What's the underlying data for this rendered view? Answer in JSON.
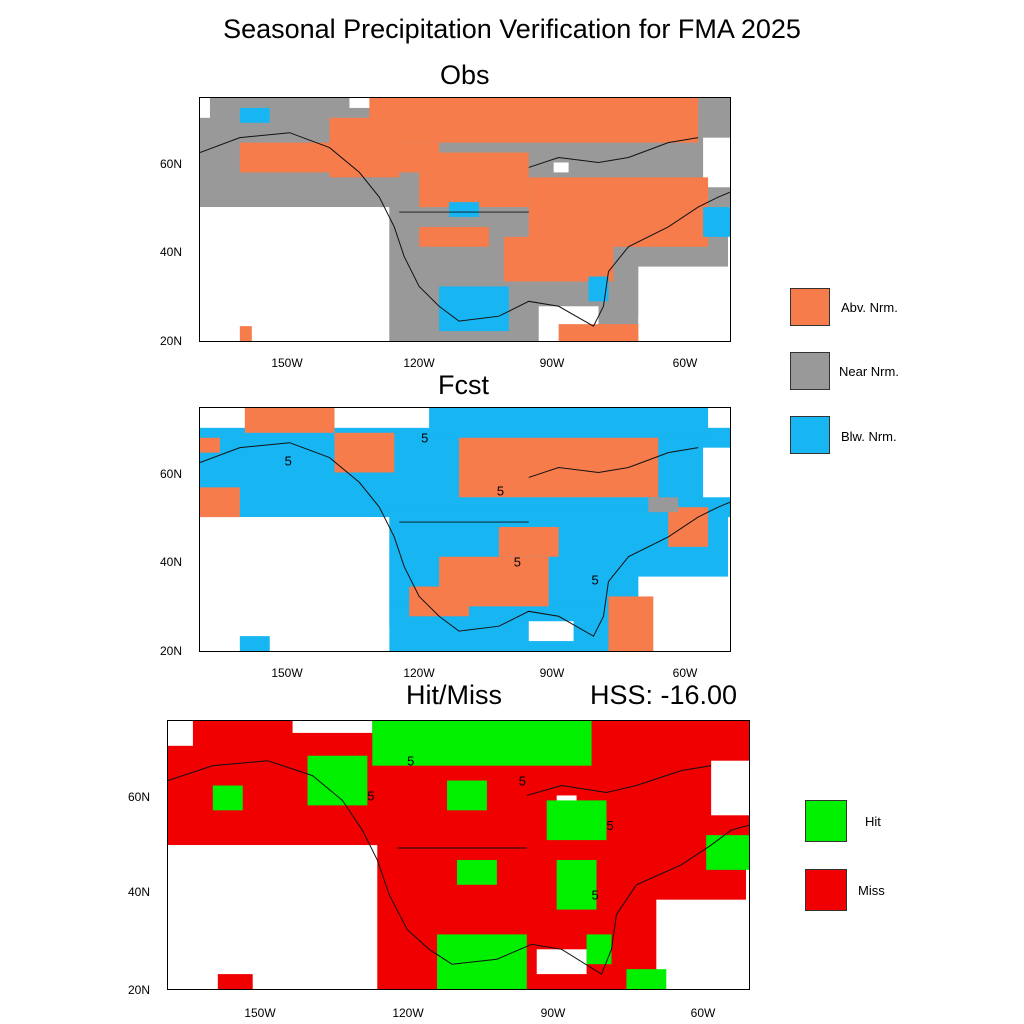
{
  "title": "Seasonal Precipitation Verification for FMA 2025",
  "colors": {
    "above": "#f77c4c",
    "near": "#999999",
    "below": "#17b5f2",
    "hit": "#00f000",
    "miss": "#f00000",
    "missing": "#ffffff",
    "coast": "#111111"
  },
  "panels": {
    "obs": {
      "title": "Obs"
    },
    "fcst": {
      "title": "Fcst"
    },
    "hitmiss": {
      "title": "Hit/Miss",
      "score": "HSS: -16.00"
    }
  },
  "axes": {
    "lat_ticks": [
      "60N",
      "40N",
      "20N"
    ],
    "lon_ticks": [
      "150W",
      "120W",
      "90W",
      "60W"
    ]
  },
  "legend_top": [
    {
      "key": "above",
      "label": "Abv. Nrm."
    },
    {
      "key": "near",
      "label": "Near Nrm."
    },
    {
      "key": "below",
      "label": "Blw. Nrm."
    }
  ],
  "legend_bottom": [
    {
      "key": "hit",
      "label": "Hit"
    },
    {
      "key": "miss",
      "label": "Miss"
    }
  ],
  "contour_label": "5"
}
